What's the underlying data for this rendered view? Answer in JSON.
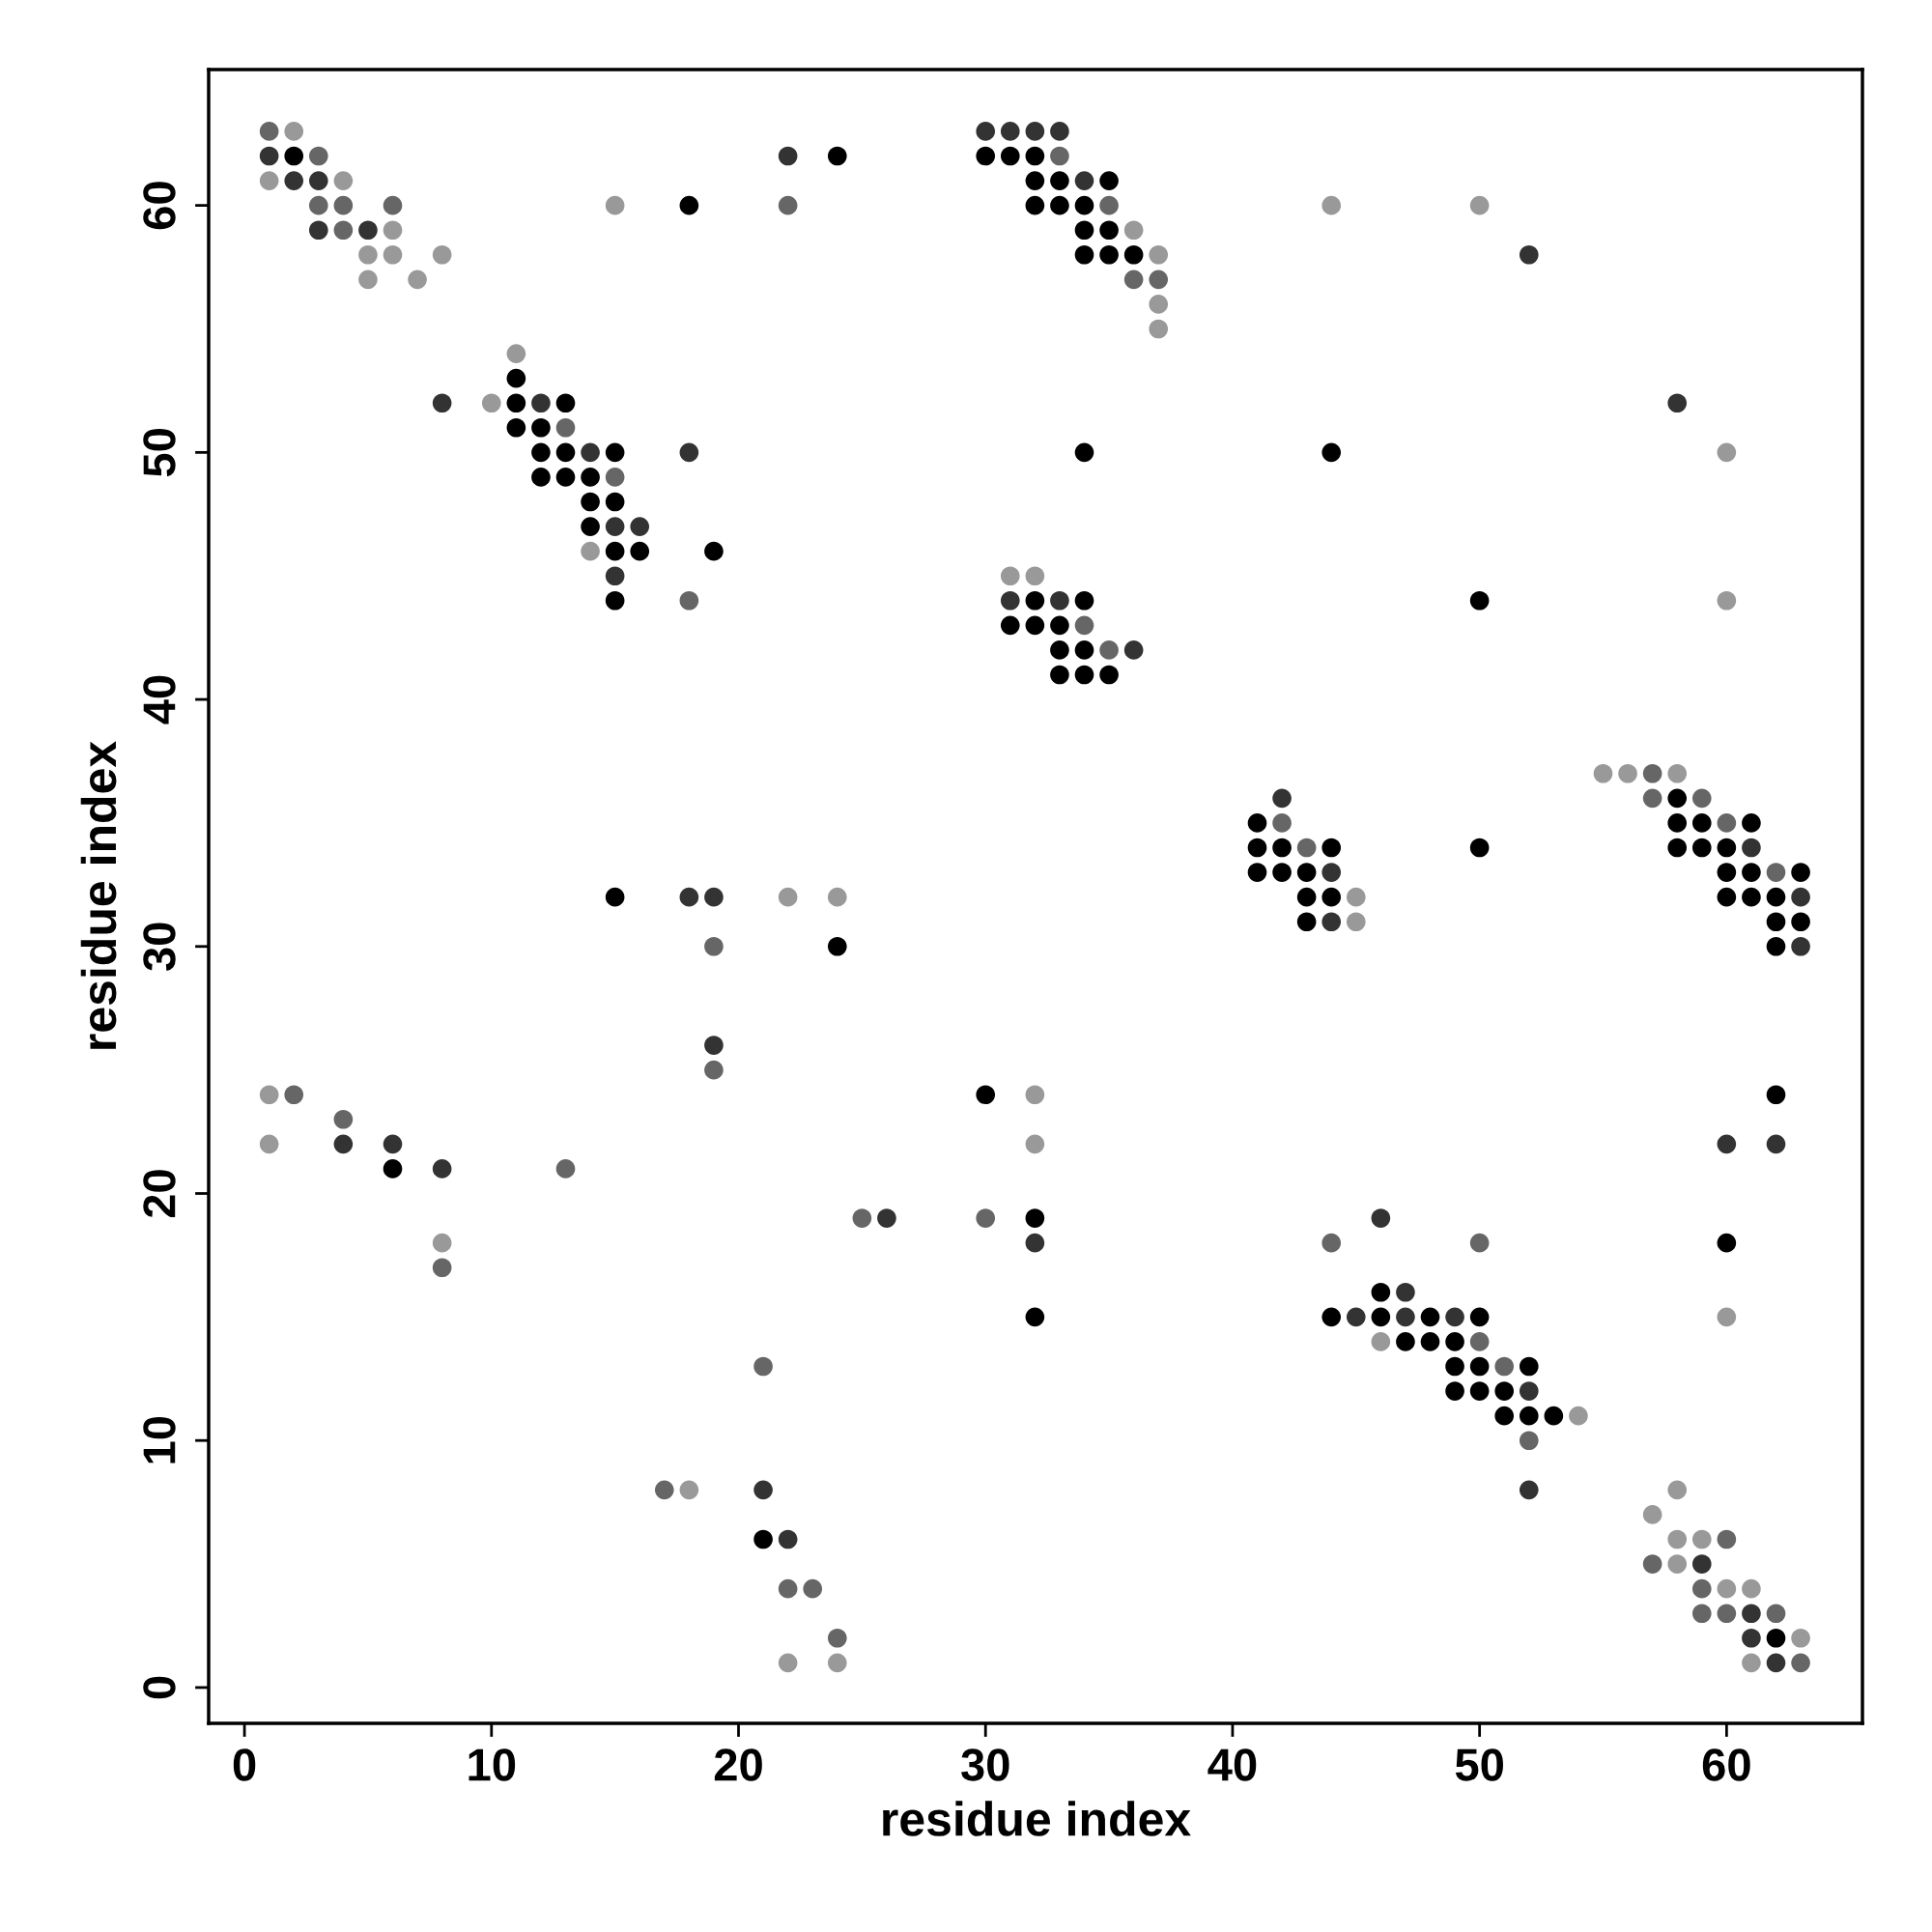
{
  "chart_data": {
    "type": "scatter",
    "xlabel": "residue index",
    "ylabel": "residue index",
    "xlim": [
      -1.45,
      65.5
    ],
    "ylim": [
      -1.45,
      65.5
    ],
    "xticks": [
      0,
      10,
      20,
      30,
      40,
      50,
      60
    ],
    "yticks": [
      0,
      10,
      20,
      30,
      40,
      50,
      60
    ],
    "grid": false,
    "marker": "circle",
    "series": [
      {
        "color": "#000000",
        "x": [
          2,
          24,
          30,
          31,
          32,
          32,
          33,
          35,
          18,
          32,
          33,
          34,
          34,
          35,
          34,
          35,
          36,
          11,
          11,
          13,
          11,
          12,
          12,
          13,
          15,
          34,
          44,
          12,
          13,
          14,
          14,
          15,
          14,
          15,
          16,
          19,
          15,
          32,
          34,
          50,
          31,
          32,
          33,
          33,
          34,
          33,
          34,
          35,
          58,
          41,
          58,
          59,
          61,
          41,
          42,
          44,
          50,
          58,
          59,
          60,
          41,
          42,
          43,
          60,
          61,
          63,
          15,
          43,
          44,
          60,
          61,
          62,
          43,
          62,
          63,
          24,
          62,
          30,
          62,
          6,
          32,
          60,
          46,
          32,
          44,
          46,
          48,
          50,
          47,
          48,
          49,
          49,
          50,
          52,
          49,
          50,
          51,
          51,
          52,
          53,
          21,
          62
        ],
        "values": [
          62,
          62,
          62,
          62,
          62,
          61,
          61,
          61,
          60,
          60,
          60,
          60,
          59,
          59,
          58,
          58,
          58,
          53,
          52,
          52,
          51,
          51,
          50,
          50,
          50,
          50,
          50,
          49,
          49,
          49,
          48,
          48,
          47,
          46,
          46,
          46,
          44,
          44,
          44,
          44,
          43,
          43,
          43,
          42,
          42,
          41,
          41,
          41,
          36,
          35,
          35,
          35,
          35,
          34,
          34,
          34,
          34,
          34,
          34,
          34,
          33,
          33,
          33,
          33,
          33,
          33,
          32,
          32,
          32,
          32,
          32,
          32,
          31,
          31,
          31,
          30,
          30,
          24,
          24,
          21,
          19,
          18,
          16,
          15,
          15,
          15,
          15,
          15,
          14,
          14,
          14,
          13,
          13,
          13,
          12,
          12,
          12,
          11,
          11,
          11,
          6,
          2
        ]
      },
      {
        "color": "#333333",
        "x": [
          30,
          31,
          32,
          33,
          1,
          22,
          2,
          3,
          34,
          3,
          5,
          52,
          8,
          12,
          58,
          14,
          18,
          15,
          16,
          15,
          31,
          33,
          36,
          42,
          61,
          44,
          18,
          19,
          63,
          44,
          63,
          19,
          4,
          6,
          60,
          62,
          8,
          26,
          46,
          32,
          47,
          45,
          47,
          49,
          52,
          21,
          52,
          22,
          59,
          61,
          61,
          62
        ],
        "values": [
          63,
          63,
          63,
          63,
          62,
          62,
          61,
          61,
          61,
          59,
          59,
          58,
          52,
          52,
          52,
          50,
          50,
          47,
          47,
          45,
          44,
          44,
          42,
          36,
          34,
          33,
          32,
          32,
          32,
          31,
          30,
          26,
          22,
          22,
          22,
          22,
          21,
          19,
          19,
          18,
          16,
          15,
          15,
          15,
          12,
          8,
          8,
          6,
          5,
          3,
          2,
          1
        ]
      },
      {
        "color": "#666666",
        "x": [
          1,
          3,
          33,
          3,
          4,
          6,
          22,
          35,
          4,
          36,
          37,
          13,
          15,
          18,
          34,
          35,
          57,
          57,
          59,
          42,
          60,
          43,
          62,
          19,
          19,
          2,
          4,
          13,
          25,
          30,
          44,
          50,
          8,
          50,
          21,
          51,
          52,
          17,
          60,
          57,
          22,
          23,
          59,
          59,
          60,
          62,
          24,
          63
        ],
        "values": [
          63,
          62,
          62,
          60,
          60,
          60,
          60,
          60,
          59,
          57,
          57,
          51,
          49,
          44,
          43,
          42,
          37,
          36,
          36,
          35,
          35,
          34,
          33,
          30,
          25,
          24,
          23,
          21,
          19,
          19,
          18,
          18,
          17,
          14,
          13,
          13,
          10,
          8,
          6,
          5,
          4,
          4,
          4,
          3,
          3,
          3,
          2,
          1
        ]
      },
      {
        "color": "#999999",
        "x": [
          2,
          1,
          4,
          15,
          44,
          50,
          6,
          36,
          5,
          6,
          8,
          37,
          5,
          7,
          37,
          37,
          11,
          10,
          60,
          14,
          31,
          32,
          60,
          55,
          56,
          58,
          22,
          24,
          45,
          45,
          1,
          32,
          1,
          32,
          8,
          60,
          46,
          54,
          18,
          58,
          57,
          58,
          59,
          58,
          60,
          61,
          63,
          22,
          24,
          61
        ],
        "values": [
          63,
          61,
          61,
          60,
          60,
          60,
          59,
          59,
          58,
          58,
          58,
          58,
          57,
          57,
          56,
          55,
          54,
          52,
          50,
          46,
          45,
          45,
          44,
          37,
          37,
          37,
          32,
          32,
          32,
          31,
          24,
          24,
          22,
          22,
          18,
          15,
          14,
          11,
          8,
          8,
          7,
          6,
          6,
          5,
          4,
          4,
          2,
          1,
          1,
          1
        ]
      }
    ]
  }
}
